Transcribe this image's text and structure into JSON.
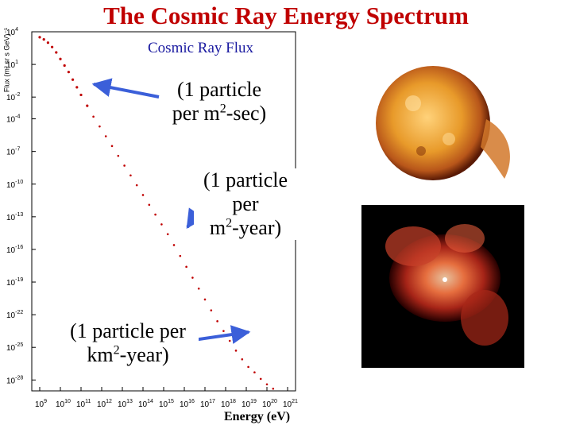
{
  "slide": {
    "title": "The Cosmic Ray Energy Spectrum"
  },
  "annotations": {
    "flux_label": "Cosmic Ray Flux",
    "per_sec": {
      "line1": "(1 particle",
      "line2a": "per m",
      "sup": "2",
      "line2b": "-sec)"
    },
    "per_year": {
      "line1": "(1 particle",
      "line2": "per",
      "line3a": "m",
      "sup": "2",
      "line3b": "-year)"
    },
    "per_km_year": {
      "line1": "(1 particle per",
      "line2a": "km",
      "sup": "2",
      "line2b": "-year)"
    }
  },
  "colors": {
    "title": "#c00000",
    "arrow": "#3b5fd9",
    "data": "#c00000",
    "flux_label": "#1a1aa0"
  },
  "images": {
    "sun": "sun-icon",
    "nebula": "nebula-icon"
  },
  "chart_data": {
    "type": "scatter",
    "title": "Cosmic Ray Flux",
    "xlabel": "Energy (eV)",
    "ylabel": "Flux (m² sr s GeV)⁻¹",
    "xscale": "log10",
    "yscale": "log10",
    "xlim": [
      9,
      21
    ],
    "ylim": [
      -29,
      4
    ],
    "x_ticks": [
      {
        "exp": 9,
        "label": "10",
        "sup": "9"
      },
      {
        "exp": 10,
        "label": "10",
        "sup": "10"
      },
      {
        "exp": 11,
        "label": "10",
        "sup": "11"
      },
      {
        "exp": 12,
        "label": "10",
        "sup": "12"
      },
      {
        "exp": 13,
        "label": "10",
        "sup": "13"
      },
      {
        "exp": 14,
        "label": "10",
        "sup": "14"
      },
      {
        "exp": 15,
        "label": "10",
        "sup": "15"
      },
      {
        "exp": 16,
        "label": "10",
        "sup": "16"
      },
      {
        "exp": 17,
        "label": "10",
        "sup": "17"
      },
      {
        "exp": 18,
        "label": "10",
        "sup": "18"
      },
      {
        "exp": 19,
        "label": "10",
        "sup": "19"
      },
      {
        "exp": 20,
        "label": "10",
        "sup": "20"
      },
      {
        "exp": 21,
        "label": "10",
        "sup": "21"
      }
    ],
    "y_ticks": [
      {
        "exp": 4,
        "label": "10",
        "sup": "4"
      },
      {
        "exp": 1,
        "label": "10",
        "sup": "1"
      },
      {
        "exp": -2,
        "label": "10",
        "sup": "-2"
      },
      {
        "exp": -4,
        "label": "10",
        "sup": "-4"
      },
      {
        "exp": -7,
        "label": "10",
        "sup": "-7"
      },
      {
        "exp": -10,
        "label": "10",
        "sup": "-10"
      },
      {
        "exp": -13,
        "label": "10",
        "sup": "-13"
      },
      {
        "exp": -16,
        "label": "10",
        "sup": "-16"
      },
      {
        "exp": -19,
        "label": "10",
        "sup": "-19"
      },
      {
        "exp": -22,
        "label": "10",
        "sup": "-22"
      },
      {
        "exp": -25,
        "label": "10",
        "sup": "-25"
      },
      {
        "exp": -28,
        "label": "10",
        "sup": "-28"
      }
    ],
    "series": [
      {
        "name": "Flux",
        "points": [
          [
            9.0,
            3.5
          ],
          [
            9.2,
            3.3
          ],
          [
            9.4,
            3.0
          ],
          [
            9.6,
            2.6
          ],
          [
            9.8,
            2.1
          ],
          [
            10.0,
            1.5
          ],
          [
            10.2,
            0.9
          ],
          [
            10.4,
            0.3
          ],
          [
            10.6,
            -0.4
          ],
          [
            10.8,
            -1.1
          ],
          [
            11.0,
            -1.8
          ],
          [
            11.3,
            -2.8
          ],
          [
            11.6,
            -3.8
          ],
          [
            11.9,
            -4.7
          ],
          [
            12.2,
            -5.6
          ],
          [
            12.5,
            -6.5
          ],
          [
            12.8,
            -7.4
          ],
          [
            13.1,
            -8.3
          ],
          [
            13.4,
            -9.2
          ],
          [
            13.7,
            -10.1
          ],
          [
            14.0,
            -11.0
          ],
          [
            14.3,
            -11.9
          ],
          [
            14.6,
            -12.8
          ],
          [
            14.9,
            -13.7
          ],
          [
            15.2,
            -14.6
          ],
          [
            15.5,
            -15.6
          ],
          [
            15.8,
            -16.6
          ],
          [
            16.1,
            -17.6
          ],
          [
            16.4,
            -18.6
          ],
          [
            16.7,
            -19.6
          ],
          [
            17.0,
            -20.6
          ],
          [
            17.3,
            -21.6
          ],
          [
            17.6,
            -22.6
          ],
          [
            17.9,
            -23.5
          ],
          [
            18.2,
            -24.4
          ],
          [
            18.5,
            -25.3
          ],
          [
            18.8,
            -26.1
          ],
          [
            19.1,
            -26.8
          ],
          [
            19.4,
            -27.3
          ],
          [
            19.7,
            -27.9
          ],
          [
            20.0,
            -28.4
          ],
          [
            20.3,
            -28.8
          ]
        ]
      }
    ]
  }
}
